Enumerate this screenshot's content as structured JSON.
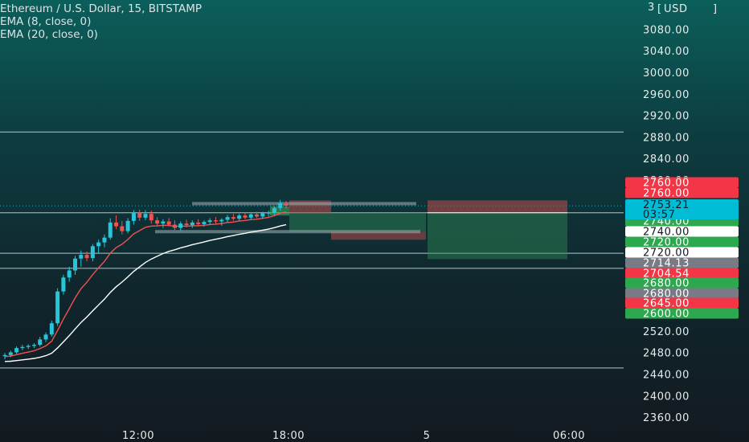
{
  "legend": {
    "title": "Ethereum / U.S. Dollar, 15, BITSTAMP",
    "indicators": [
      "EMA (8, close, 0)",
      "EMA (20, close, 0)"
    ]
  },
  "currency": "USD",
  "top_partial_label": "3",
  "colors": {
    "up": "#26c6da",
    "down": "#ef5350",
    "ema8": "#ef5350",
    "ema20": "#ffffff",
    "tag_red": "#f23645",
    "tag_green": "#22ab94",
    "tag_white": "#ffffff",
    "tag_gray": "#787b86",
    "tag_blue": "#00bcd4"
  },
  "chart_data": {
    "type": "candlestick",
    "title": "Ethereum / U.S. Dollar, 15, BITSTAMP",
    "y_ticks": [
      "3080.00",
      "3040.00",
      "3000.00",
      "2960.00",
      "2920.00",
      "2880.00",
      "2840.00",
      "2800.00",
      "2520.00",
      "2480.00",
      "2440.00",
      "2400.00",
      "2360.00"
    ],
    "x_ticks": [
      "12:00",
      "18:00",
      "5",
      "06:00"
    ],
    "ylim": [
      2340,
      3120
    ],
    "current_price": {
      "price": "2753.21",
      "countdown": "03:57"
    },
    "price_tags": [
      {
        "label": "2760.00",
        "style": "red"
      },
      {
        "label": "2760.00",
        "style": "red"
      },
      {
        "label": "2740.00",
        "style": "green"
      },
      {
        "label": "2740.00",
        "style": "white"
      },
      {
        "label": "2720.00",
        "style": "green"
      },
      {
        "label": "2720.00",
        "style": "white"
      },
      {
        "label": "2714.13",
        "style": "gray"
      },
      {
        "label": "2704.54",
        "style": "red"
      },
      {
        "label": "2680.00",
        "style": "green"
      },
      {
        "label": "2680.00",
        "style": "gray"
      },
      {
        "label": "2645.00",
        "style": "red"
      },
      {
        "label": "2600.00",
        "style": "green"
      }
    ],
    "horizontal_lines": [
      2890,
      2740,
      2665,
      2637,
      2452
    ],
    "series_ohlc": [
      {
        "t": 0,
        "o": 2474,
        "h": 2480,
        "l": 2468,
        "c": 2476
      },
      {
        "t": 1,
        "o": 2476,
        "h": 2484,
        "l": 2472,
        "c": 2481
      },
      {
        "t": 2,
        "o": 2481,
        "h": 2492,
        "l": 2478,
        "c": 2489
      },
      {
        "t": 3,
        "o": 2489,
        "h": 2495,
        "l": 2485,
        "c": 2491
      },
      {
        "t": 4,
        "o": 2491,
        "h": 2496,
        "l": 2487,
        "c": 2493
      },
      {
        "t": 5,
        "o": 2493,
        "h": 2498,
        "l": 2489,
        "c": 2495
      },
      {
        "t": 6,
        "o": 2495,
        "h": 2510,
        "l": 2492,
        "c": 2505
      },
      {
        "t": 7,
        "o": 2505,
        "h": 2518,
        "l": 2500,
        "c": 2514
      },
      {
        "t": 8,
        "o": 2514,
        "h": 2540,
        "l": 2510,
        "c": 2535
      },
      {
        "t": 9,
        "o": 2535,
        "h": 2600,
        "l": 2530,
        "c": 2594
      },
      {
        "t": 10,
        "o": 2594,
        "h": 2625,
        "l": 2588,
        "c": 2620
      },
      {
        "t": 11,
        "o": 2620,
        "h": 2640,
        "l": 2612,
        "c": 2633
      },
      {
        "t": 12,
        "o": 2633,
        "h": 2660,
        "l": 2625,
        "c": 2655
      },
      {
        "t": 13,
        "o": 2655,
        "h": 2670,
        "l": 2640,
        "c": 2662
      },
      {
        "t": 14,
        "o": 2662,
        "h": 2668,
        "l": 2650,
        "c": 2656
      },
      {
        "t": 15,
        "o": 2656,
        "h": 2682,
        "l": 2650,
        "c": 2678
      },
      {
        "t": 16,
        "o": 2678,
        "h": 2690,
        "l": 2665,
        "c": 2685
      },
      {
        "t": 17,
        "o": 2685,
        "h": 2700,
        "l": 2676,
        "c": 2694
      },
      {
        "t": 18,
        "o": 2694,
        "h": 2730,
        "l": 2690,
        "c": 2722
      },
      {
        "t": 19,
        "o": 2722,
        "h": 2735,
        "l": 2710,
        "c": 2715
      },
      {
        "t": 20,
        "o": 2715,
        "h": 2725,
        "l": 2700,
        "c": 2706
      },
      {
        "t": 21,
        "o": 2706,
        "h": 2730,
        "l": 2702,
        "c": 2725
      },
      {
        "t": 22,
        "o": 2725,
        "h": 2745,
        "l": 2718,
        "c": 2740
      },
      {
        "t": 23,
        "o": 2740,
        "h": 2746,
        "l": 2725,
        "c": 2731
      },
      {
        "t": 24,
        "o": 2731,
        "h": 2745,
        "l": 2726,
        "c": 2738
      },
      {
        "t": 25,
        "o": 2738,
        "h": 2744,
        "l": 2720,
        "c": 2726
      },
      {
        "t": 26,
        "o": 2726,
        "h": 2732,
        "l": 2716,
        "c": 2720
      },
      {
        "t": 27,
        "o": 2720,
        "h": 2728,
        "l": 2712,
        "c": 2724
      },
      {
        "t": 28,
        "o": 2724,
        "h": 2730,
        "l": 2715,
        "c": 2718
      },
      {
        "t": 29,
        "o": 2718,
        "h": 2726,
        "l": 2708,
        "c": 2712
      },
      {
        "t": 30,
        "o": 2712,
        "h": 2724,
        "l": 2706,
        "c": 2720
      },
      {
        "t": 31,
        "o": 2720,
        "h": 2727,
        "l": 2713,
        "c": 2717
      },
      {
        "t": 32,
        "o": 2717,
        "h": 2726,
        "l": 2712,
        "c": 2722
      },
      {
        "t": 33,
        "o": 2722,
        "h": 2728,
        "l": 2716,
        "c": 2719
      },
      {
        "t": 34,
        "o": 2719,
        "h": 2726,
        "l": 2714,
        "c": 2723
      },
      {
        "t": 35,
        "o": 2723,
        "h": 2730,
        "l": 2718,
        "c": 2726
      },
      {
        "t": 36,
        "o": 2726,
        "h": 2732,
        "l": 2720,
        "c": 2724
      },
      {
        "t": 37,
        "o": 2724,
        "h": 2730,
        "l": 2716,
        "c": 2727
      },
      {
        "t": 38,
        "o": 2727,
        "h": 2736,
        "l": 2722,
        "c": 2732
      },
      {
        "t": 39,
        "o": 2732,
        "h": 2738,
        "l": 2725,
        "c": 2729
      },
      {
        "t": 40,
        "o": 2729,
        "h": 2738,
        "l": 2724,
        "c": 2735
      },
      {
        "t": 41,
        "o": 2735,
        "h": 2740,
        "l": 2728,
        "c": 2731
      },
      {
        "t": 42,
        "o": 2731,
        "h": 2740,
        "l": 2727,
        "c": 2737
      },
      {
        "t": 43,
        "o": 2737,
        "h": 2742,
        "l": 2730,
        "c": 2733
      },
      {
        "t": 44,
        "o": 2733,
        "h": 2742,
        "l": 2729,
        "c": 2739
      },
      {
        "t": 45,
        "o": 2739,
        "h": 2744,
        "l": 2733,
        "c": 2740
      },
      {
        "t": 46,
        "o": 2740,
        "h": 2752,
        "l": 2736,
        "c": 2749
      },
      {
        "t": 47,
        "o": 2749,
        "h": 2764,
        "l": 2744,
        "c": 2758
      },
      {
        "t": 48,
        "o": 2758,
        "h": 2762,
        "l": 2748,
        "c": 2753
      }
    ]
  }
}
